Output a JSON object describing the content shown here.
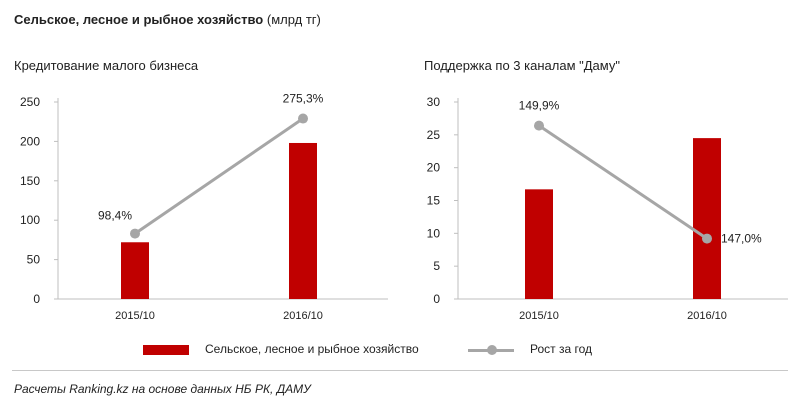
{
  "header": {
    "title_bold": "Сельское, лесное и рыбное хозяйство",
    "title_unit": "(млрд тг)"
  },
  "source": "Расчеты Ranking.kz на основе данных НБ РК, ДАМУ",
  "legend": {
    "bar_label": "Сельское, лесное и рыбное хозяйство",
    "line_label": "Рост за год"
  },
  "colors": {
    "bar": "#c00000",
    "line": "#a6a6a6"
  },
  "chart_data": [
    {
      "type": "bar",
      "title": "Кредитование  малого бизнеса",
      "categories": [
        "2015/10",
        "2016/10"
      ],
      "series": [
        {
          "name": "Сельское, лесное и рыбное хозяйство",
          "values": [
            72,
            198
          ]
        },
        {
          "name": "Рост за год",
          "kind": "line",
          "values": [
            83,
            229
          ],
          "labels": [
            "98,4%",
            "275,3%"
          ]
        }
      ],
      "yticks": [
        "0",
        "50",
        "100",
        "150",
        "200",
        "250"
      ],
      "ylim": [
        0,
        250
      ]
    },
    {
      "type": "bar",
      "title": "Поддержка  по 3 каналам \"Даму\"",
      "categories": [
        "2015/10",
        "2016/10"
      ],
      "series": [
        {
          "name": "Сельское, лесное и рыбное хозяйство",
          "values": [
            16.7,
            24.5
          ]
        },
        {
          "name": "Рост за год",
          "kind": "line",
          "values": [
            26.4,
            9.2
          ],
          "labels": [
            "149,9%",
            "147,0%"
          ]
        }
      ],
      "yticks": [
        "0",
        "5",
        "10",
        "15",
        "20",
        "25",
        "30"
      ],
      "ylim": [
        0,
        30
      ]
    }
  ]
}
